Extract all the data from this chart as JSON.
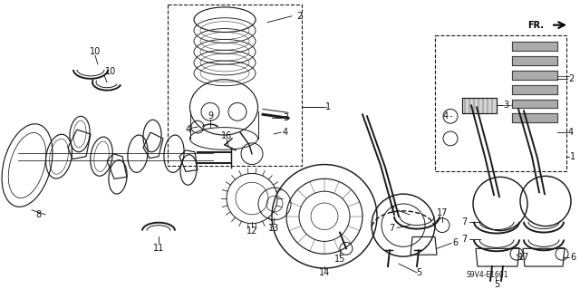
{
  "bg_color": "#ffffff",
  "line_color": "#1a1a1a",
  "fig_width": 6.4,
  "fig_height": 3.19,
  "diagram_code": "S9V4-E1601",
  "fr_label": "FR.",
  "image_b64": ""
}
